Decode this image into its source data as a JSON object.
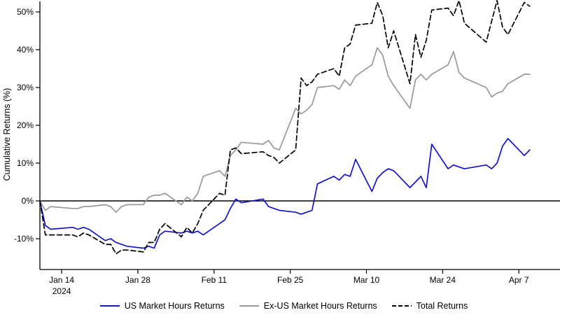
{
  "chart_data": {
    "type": "line",
    "title": "",
    "xlabel": "",
    "ylabel": "Cumulative Returns (%)",
    "ylim": [
      -18,
      53
    ],
    "grid": false,
    "zero_line": true,
    "legend_position": "bottom",
    "x_dates": [
      "2024-01-10",
      "2024-01-11",
      "2024-01-12",
      "2024-01-16",
      "2024-01-17",
      "2024-01-18",
      "2024-01-19",
      "2024-01-22",
      "2024-01-23",
      "2024-01-24",
      "2024-01-25",
      "2024-01-26",
      "2024-01-29",
      "2024-01-30",
      "2024-01-31",
      "2024-02-01",
      "2024-02-02",
      "2024-02-05",
      "2024-02-06",
      "2024-02-07",
      "2024-02-08",
      "2024-02-09",
      "2024-02-12",
      "2024-02-13",
      "2024-02-14",
      "2024-02-15",
      "2024-02-16",
      "2024-02-20",
      "2024-02-21",
      "2024-02-22",
      "2024-02-23",
      "2024-02-26",
      "2024-02-27",
      "2024-02-28",
      "2024-02-29",
      "2024-03-01",
      "2024-03-04",
      "2024-03-05",
      "2024-03-06",
      "2024-03-07",
      "2024-03-08",
      "2024-03-11",
      "2024-03-12",
      "2024-03-13",
      "2024-03-14",
      "2024-03-15",
      "2024-03-18",
      "2024-03-19",
      "2024-03-20",
      "2024-03-21",
      "2024-03-22",
      "2024-03-25",
      "2024-03-26",
      "2024-03-27",
      "2024-03-28",
      "2024-04-01",
      "2024-04-02",
      "2024-04-03",
      "2024-04-04",
      "2024-04-05",
      "2024-04-08",
      "2024-04-09"
    ],
    "x_ticks": [
      {
        "date": "2024-01-14",
        "label": "Jan 14",
        "sublabel": "2024"
      },
      {
        "date": "2024-01-28",
        "label": "Jan 28",
        "sublabel": ""
      },
      {
        "date": "2024-02-11",
        "label": "Feb 11",
        "sublabel": ""
      },
      {
        "date": "2024-02-25",
        "label": "Feb 25",
        "sublabel": ""
      },
      {
        "date": "2024-03-10",
        "label": "Mar 10",
        "sublabel": ""
      },
      {
        "date": "2024-03-24",
        "label": "Mar 24",
        "sublabel": ""
      },
      {
        "date": "2024-04-07",
        "label": "Apr 7",
        "sublabel": ""
      }
    ],
    "y_ticks": [
      {
        "value": -10,
        "label": "-10%"
      },
      {
        "value": 0,
        "label": "0%"
      },
      {
        "value": 10,
        "label": "10%"
      },
      {
        "value": 20,
        "label": "20%"
      },
      {
        "value": 30,
        "label": "30%"
      },
      {
        "value": 40,
        "label": "40%"
      },
      {
        "value": 50,
        "label": "50%"
      }
    ],
    "series": [
      {
        "name": "US Market Hours Returns",
        "color": "#1414cc",
        "style": "solid",
        "values": [
          0,
          -6.5,
          -7.5,
          -7,
          -7.5,
          -7,
          -7.5,
          -10.5,
          -10,
          -11,
          -11.5,
          -12,
          -12.5,
          -12,
          -12.5,
          -9,
          -8,
          -8.5,
          -8,
          -8.5,
          -8,
          -9,
          -6,
          -5,
          -2,
          0.5,
          -0.5,
          0.5,
          -1.5,
          -2,
          -2.5,
          -3,
          -3.5,
          -3,
          -2.5,
          4.5,
          6.5,
          5.5,
          7,
          6.5,
          11,
          2.5,
          6,
          7.5,
          8.5,
          8,
          3.5,
          5,
          6.5,
          3.5,
          15,
          8.5,
          9.5,
          9,
          8.5,
          9.5,
          8.5,
          10,
          14.5,
          16.5,
          12,
          13.5
        ]
      },
      {
        "name": "Ex-US Market Hours Returns",
        "color": "#999999",
        "style": "solid",
        "values": [
          0,
          -2.5,
          -1.5,
          -2,
          -2,
          -1.5,
          -1.5,
          -1,
          -1.5,
          -3,
          -1.5,
          -1,
          -1,
          1,
          1.5,
          1.5,
          2,
          -1,
          1,
          0,
          2,
          6.5,
          8,
          6.5,
          12,
          13.5,
          15.5,
          15,
          16,
          14,
          13.5,
          24.5,
          23,
          24,
          25.5,
          30,
          30.5,
          29.5,
          32,
          30.5,
          33,
          36,
          40.5,
          38.5,
          33,
          30.5,
          24.5,
          32,
          33.5,
          32,
          33.5,
          36,
          39.5,
          34,
          32.5,
          30,
          27.5,
          28.5,
          29,
          31,
          33.5,
          33.5
        ]
      },
      {
        "name": "Total Returns",
        "color": "#000000",
        "style": "dashed",
        "values": [
          0,
          -9,
          -9,
          -9,
          -9.5,
          -8.5,
          -9,
          -11.5,
          -11.5,
          -14,
          -13,
          -13,
          -13.5,
          -11,
          -11,
          -7.5,
          -6,
          -9.5,
          -7,
          -8.5,
          -6,
          -2.5,
          2,
          1.5,
          13.5,
          14,
          12.5,
          13,
          12,
          11.5,
          10,
          13.5,
          32.5,
          30.5,
          31.5,
          33.5,
          35,
          33,
          40.5,
          41.5,
          46.5,
          47,
          52.5,
          49,
          40.5,
          45,
          31,
          44,
          38,
          42.5,
          50.5,
          51,
          49,
          53,
          47,
          42,
          47.5,
          53,
          46,
          44,
          52.5,
          51.5
        ]
      }
    ]
  }
}
